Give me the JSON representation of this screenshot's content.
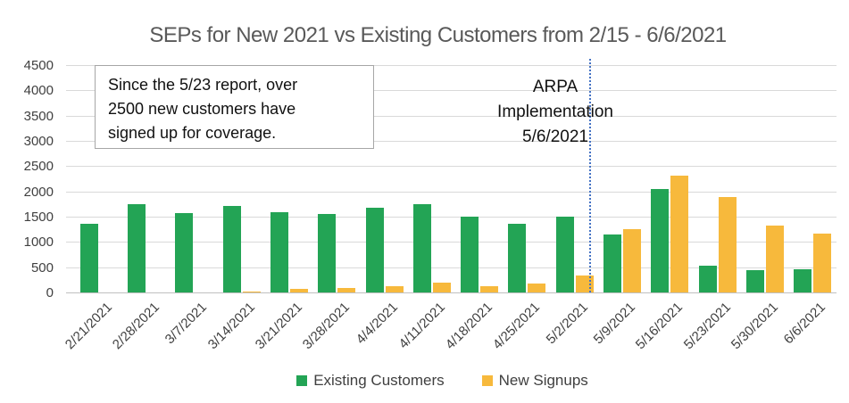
{
  "title": "SEPs for New 2021 vs Existing Customers from 2/15 - 6/6/2021",
  "annotation_box": {
    "lines": [
      "Since the 5/23 report, over",
      "2500 new customers have",
      "signed up for coverage."
    ]
  },
  "arpa_annotation": {
    "lines": [
      "ARPA",
      "Implementation",
      "5/6/2021"
    ]
  },
  "chart_data": {
    "type": "bar",
    "title": "SEPs for New 2021 vs Existing Customers from 2/15 - 6/6/2021",
    "categories": [
      "2/21/2021",
      "2/28/2021",
      "3/7/2021",
      "3/14/2021",
      "3/21/2021",
      "3/28/2021",
      "4/4/2021",
      "4/11/2021",
      "4/18/2021",
      "4/25/2021",
      "5/2/2021",
      "5/9/2021",
      "5/16/2021",
      "5/23/2021",
      "5/30/2021",
      "6/6/2021"
    ],
    "series": [
      {
        "name": "Existing Customers",
        "color": "#23A455",
        "values": [
          1360,
          1740,
          1570,
          1720,
          1580,
          1555,
          1670,
          1750,
          1500,
          1350,
          1500,
          1150,
          2050,
          530,
          440,
          450
        ]
      },
      {
        "name": "New Signups",
        "color": "#F7B93C",
        "values": [
          0,
          0,
          0,
          20,
          70,
          85,
          115,
          190,
          120,
          170,
          340,
          1250,
          2320,
          1890,
          1330,
          1170
        ]
      }
    ],
    "xlabel": "",
    "ylabel": "",
    "ylim": [
      0,
      4500
    ],
    "ytick_step": 500,
    "grid": "horizontal",
    "gridline_color": "#d9d9d9",
    "legend_position": "bottom",
    "annotations": {
      "textbox": "Since the 5/23 report, over 2500 new customers have signed up for coverage.",
      "vline": {
        "label": "ARPA Implementation 5/6/2021",
        "between_categories": [
          "5/2/2021",
          "5/9/2021"
        ],
        "style": "dotted",
        "color": "#4472C4"
      }
    }
  }
}
